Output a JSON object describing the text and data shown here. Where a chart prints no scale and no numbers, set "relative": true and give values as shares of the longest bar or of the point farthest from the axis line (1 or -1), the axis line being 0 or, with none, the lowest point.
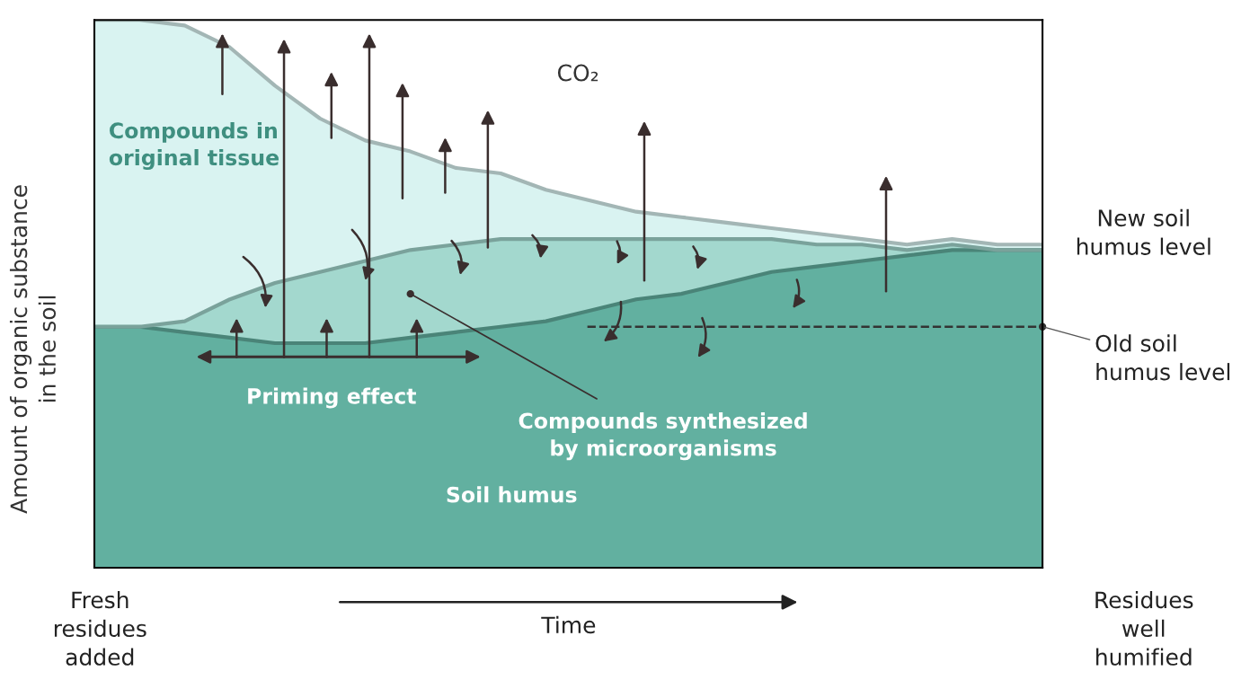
{
  "chart_data": {
    "type": "area",
    "stacked": true,
    "relative": true,
    "tick_labels": false,
    "xlabel": "Time",
    "ylabel": "Amount of organic substance in the soil",
    "categories": [
      null,
      null,
      null,
      null,
      null,
      null,
      null,
      null,
      null,
      null,
      null,
      null,
      null,
      null,
      null,
      null,
      null,
      null,
      null,
      null,
      null,
      null
    ],
    "series": [
      {
        "name": "Soil humus",
        "color": "#62b0a0",
        "values": [
          0.44,
          0.44,
          0.43,
          0.42,
          0.41,
          0.41,
          0.41,
          0.42,
          0.43,
          0.44,
          0.45,
          0.47,
          0.49,
          0.5,
          0.52,
          0.54,
          0.55,
          0.56,
          0.57,
          0.58,
          0.58,
          0.58
        ]
      },
      {
        "name": "Compounds synthesized by microorganisms",
        "color": "#a3d8ce",
        "values": [
          0,
          0,
          0.02,
          0.07,
          0.11,
          0.13,
          0.15,
          0.16,
          0.16,
          0.16,
          0.15,
          0.13,
          0.11,
          0.1,
          0.08,
          0.06,
          0.04,
          0.03,
          0.01,
          0.01,
          0,
          0
        ]
      },
      {
        "name": "Compounds in original tissue",
        "color": "#d9f3f1",
        "values": [
          0.56,
          0.56,
          0.54,
          0.46,
          0.36,
          0.28,
          0.22,
          0.18,
          0.14,
          0.12,
          0.09,
          0.07,
          0.05,
          0.04,
          0.03,
          0.02,
          0.02,
          0.01,
          0.01,
          0.01,
          0.01,
          0.01
        ]
      }
    ],
    "ref_lines": [
      {
        "axis": "y",
        "value": 0.44,
        "label": "Old soil humus level",
        "color": "#333333",
        "line_style": "dashed"
      }
    ],
    "annotations": [
      "CO₂",
      "Priming effect",
      "New soil humus level",
      "Fresh residues added",
      "Residues well humified"
    ]
  }
}
